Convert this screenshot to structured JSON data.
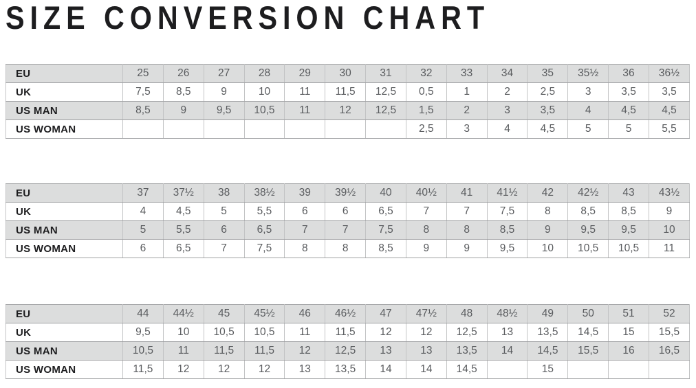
{
  "title": "SIZE CONVERSION CHART",
  "colors": {
    "title_text": "#1d1d1f",
    "label_text": "#1d1d1f",
    "value_text": "#595b5e",
    "row_shade": "#dcdddd",
    "border_horizontal": "#9fa0a2",
    "border_vertical": "#c2c3c4",
    "background": "#ffffff"
  },
  "tables": [
    {
      "rows": [
        {
          "label": "EU",
          "values": [
            "25",
            "26",
            "27",
            "28",
            "29",
            "30",
            "31",
            "32",
            "33",
            "34",
            "35",
            "35½",
            "36",
            "36½"
          ]
        },
        {
          "label": "UK",
          "values": [
            "7,5",
            "8,5",
            "9",
            "10",
            "11",
            "11,5",
            "12,5",
            "0,5",
            "1",
            "2",
            "2,5",
            "3",
            "3,5",
            "3,5"
          ]
        },
        {
          "label": "US MAN",
          "values": [
            "8,5",
            "9",
            "9,5",
            "10,5",
            "11",
            "12",
            "12,5",
            "1,5",
            "2",
            "3",
            "3,5",
            "4",
            "4,5",
            "4,5"
          ]
        },
        {
          "label": "US WOMAN",
          "values": [
            "",
            "",
            "",
            "",
            "",
            "",
            "",
            "2,5",
            "3",
            "4",
            "4,5",
            "5",
            "5",
            "5,5"
          ]
        }
      ]
    },
    {
      "rows": [
        {
          "label": "EU",
          "values": [
            "37",
            "37½",
            "38",
            "38½",
            "39",
            "39½",
            "40",
            "40½",
            "41",
            "41½",
            "42",
            "42½",
            "43",
            "43½"
          ]
        },
        {
          "label": "UK",
          "values": [
            "4",
            "4,5",
            "5",
            "5,5",
            "6",
            "6",
            "6,5",
            "7",
            "7",
            "7,5",
            "8",
            "8,5",
            "8,5",
            "9"
          ]
        },
        {
          "label": "US MAN",
          "values": [
            "5",
            "5,5",
            "6",
            "6,5",
            "7",
            "7",
            "7,5",
            "8",
            "8",
            "8,5",
            "9",
            "9,5",
            "9,5",
            "10"
          ]
        },
        {
          "label": "US WOMAN",
          "values": [
            "6",
            "6,5",
            "7",
            "7,5",
            "8",
            "8",
            "8,5",
            "9",
            "9",
            "9,5",
            "10",
            "10,5",
            "10,5",
            "11"
          ]
        }
      ]
    },
    {
      "rows": [
        {
          "label": "EU",
          "values": [
            "44",
            "44½",
            "45",
            "45½",
            "46",
            "46½",
            "47",
            "47½",
            "48",
            "48½",
            "49",
            "50",
            "51",
            "52"
          ]
        },
        {
          "label": "UK",
          "values": [
            "9,5",
            "10",
            "10,5",
            "10,5",
            "11",
            "11,5",
            "12",
            "12",
            "12,5",
            "13",
            "13,5",
            "14,5",
            "15",
            "15,5"
          ]
        },
        {
          "label": "US MAN",
          "values": [
            "10,5",
            "11",
            "11,5",
            "11,5",
            "12",
            "12,5",
            "13",
            "13",
            "13,5",
            "14",
            "14,5",
            "15,5",
            "16",
            "16,5"
          ]
        },
        {
          "label": "US WOMAN",
          "values": [
            "11,5",
            "12",
            "12",
            "12",
            "13",
            "13,5",
            "14",
            "14",
            "14,5",
            "",
            "15",
            "",
            "",
            ""
          ]
        }
      ]
    }
  ]
}
